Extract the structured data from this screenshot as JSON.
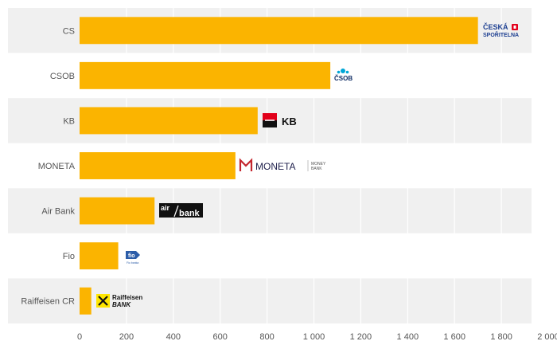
{
  "colors": {
    "bar": "#fbb400",
    "row_band": "#f0f0f0",
    "row_band_alt": "#ffffff",
    "grid": "#ffffff",
    "label": "#555555",
    "cs_blue": "#1d3f91",
    "cs_red": "#e3001b",
    "csob_blue": "#0e2c64",
    "csob_cyan": "#00a6d6",
    "kb_red": "#e2001a",
    "moneta_navy": "#1e1f4b",
    "moneta_red": "#c4262e",
    "fio_blue": "#2b5ca8",
    "raif_yellow": "#fee600"
  },
  "logos": {
    "cs_line1": "ČESKÁ",
    "cs_line2": "SPOŘITELNA",
    "csob": "ČSOB",
    "kb": "KB",
    "moneta": "MONETA",
    "moneta_sub1": "MONEY",
    "moneta_sub2": "BANK",
    "airbank_air": "air",
    "airbank_bank": "bank",
    "fio": "fio",
    "fio_sub": "Fio banka",
    "raif_line1": "Raiffeisen",
    "raif_line2": "BANK"
  },
  "chart_data": {
    "type": "bar",
    "orientation": "horizontal",
    "categories": [
      "CS",
      "CSOB",
      "KB",
      "MONETA",
      "Air Bank",
      "Fio",
      "Raiffeisen CR"
    ],
    "values": [
      1700,
      1070,
      760,
      665,
      320,
      165,
      50
    ],
    "xlim": [
      0,
      2000
    ],
    "x_ticks": [
      0,
      200,
      400,
      600,
      800,
      1000,
      1200,
      1400,
      1600,
      1800,
      2000
    ],
    "x_tick_labels": [
      "0",
      "200",
      "400",
      "600",
      "800",
      "1 000",
      "1 200",
      "1 400",
      "1 600",
      "1 800",
      "2 000"
    ],
    "grid": true,
    "legend": "none",
    "title": "",
    "xlabel": "",
    "ylabel": ""
  }
}
